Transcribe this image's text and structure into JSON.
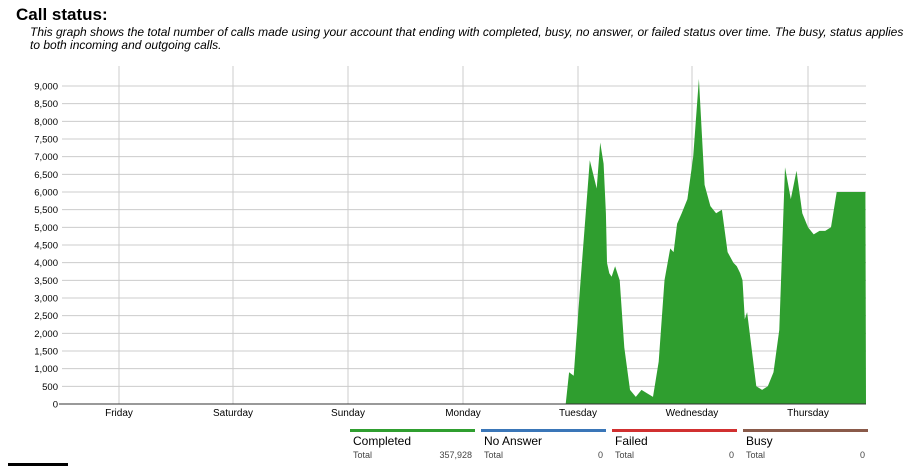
{
  "page": {
    "title": "Call status:",
    "description": "This graph shows the total number of calls made using your account that ending with completed, busy, no answer, or failed status over time. The busy, status applies to both incoming and outgoing calls."
  },
  "colors": {
    "completed": "#2f9e2f",
    "no_answer": "#3a76b8",
    "failed": "#d13030",
    "busy": "#8a5a4a",
    "grid": "#cccccc"
  },
  "legend": [
    {
      "name": "Completed",
      "total_label": "Total",
      "total": "357,928",
      "color_key": "completed"
    },
    {
      "name": "No Answer",
      "total_label": "Total",
      "total": "0",
      "color_key": "no_answer"
    },
    {
      "name": "Failed",
      "total_label": "Total",
      "total": "0",
      "color_key": "failed"
    },
    {
      "name": "Busy",
      "total_label": "Total",
      "total": "0",
      "color_key": "busy"
    }
  ],
  "chart_data": {
    "type": "area",
    "x_tick_labels": [
      "Friday",
      "Saturday",
      "Sunday",
      "Monday",
      "Tuesday",
      "Wednesday",
      "Thursday"
    ],
    "y_tick_labels": [
      "0",
      "500",
      "1,000",
      "1,500",
      "2,000",
      "2,500",
      "3,000",
      "3,500",
      "4,000",
      "4,500",
      "5,000",
      "5,500",
      "6,000",
      "6,500",
      "7,000",
      "7,500",
      "8,000",
      "8,500",
      "9,000"
    ],
    "ylim": [
      0,
      9000
    ],
    "xlim": [
      0,
      7
    ],
    "grid": true,
    "legend_position": "bottom",
    "series": [
      {
        "name": "Completed",
        "x": [
          4.37,
          4.39,
          4.42,
          4.46,
          4.52,
          4.6,
          4.66,
          4.69,
          4.72,
          4.74,
          4.75,
          4.77,
          4.79,
          4.82,
          4.86,
          4.9,
          4.95,
          5.0,
          5.05,
          5.1,
          5.15,
          5.2,
          5.25,
          5.3,
          5.33,
          5.36,
          5.4,
          5.45,
          5.5,
          5.55,
          5.6,
          5.65,
          5.7,
          5.75,
          5.8,
          5.85,
          5.88,
          5.91,
          5.93,
          5.95,
          5.97,
          6.0,
          6.05,
          6.1,
          6.15,
          6.2,
          6.25,
          6.3,
          6.35,
          6.4,
          6.45,
          6.5,
          6.55,
          6.6,
          6.65,
          6.7,
          6.75,
          6.8,
          6.85,
          6.9,
          6.95,
          7.0
        ],
        "values": [
          0,
          0,
          900,
          800,
          3500,
          6900,
          6100,
          7400,
          6800,
          5400,
          4000,
          3700,
          3600,
          3900,
          3500,
          1600,
          400,
          200,
          400,
          300,
          200,
          1200,
          3500,
          4400,
          4300,
          5100,
          5400,
          5800,
          7000,
          9200,
          6200,
          5600,
          5400,
          5500,
          4300,
          4000,
          3900,
          3700,
          3500,
          2400,
          2600,
          1800,
          500,
          400,
          500,
          900,
          2100,
          6700,
          5800,
          6600,
          5400,
          5000,
          4800,
          4900,
          4900,
          5000,
          6000,
          6000,
          6000,
          6000,
          6000,
          6000
        ]
      },
      {
        "name": "No Answer",
        "x": [
          0,
          7
        ],
        "values": [
          0,
          0
        ]
      },
      {
        "name": "Failed",
        "x": [
          0,
          7
        ],
        "values": [
          0,
          0
        ]
      },
      {
        "name": "Busy",
        "x": [
          0,
          7
        ],
        "values": [
          0,
          0
        ]
      }
    ]
  }
}
